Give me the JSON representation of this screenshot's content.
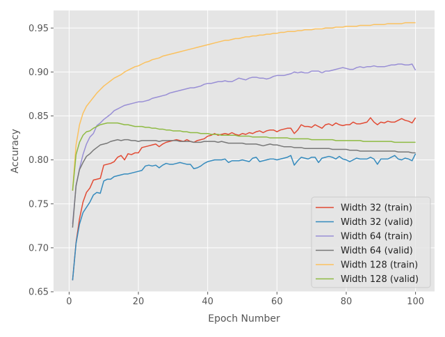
{
  "chart_data": {
    "type": "line",
    "title": "",
    "xlabel": "Epoch Number",
    "ylabel": "Accuracy",
    "xlim": [
      -4.5,
      105.5
    ],
    "ylim": [
      0.65,
      0.97
    ],
    "xticks": [
      0,
      20,
      40,
      60,
      80,
      100
    ],
    "yticks": [
      0.65,
      0.7,
      0.75,
      0.8,
      0.85,
      0.9,
      0.95
    ],
    "ytick_labels": [
      "0.65",
      "0.70",
      "0.75",
      "0.80",
      "0.85",
      "0.90",
      "0.95"
    ],
    "grid": true,
    "legend_position": "lower-right",
    "x_start": 1,
    "x_step": 1,
    "series": [
      {
        "name": "Width 32 (train)",
        "color": "#E24A33",
        "values": [
          0.663,
          0.706,
          0.733,
          0.752,
          0.763,
          0.768,
          0.777,
          0.778,
          0.779,
          0.794,
          0.795,
          0.796,
          0.798,
          0.803,
          0.805,
          0.8,
          0.807,
          0.806,
          0.808,
          0.808,
          0.814,
          0.815,
          0.816,
          0.817,
          0.818,
          0.815,
          0.818,
          0.82,
          0.821,
          0.822,
          0.823,
          0.822,
          0.821,
          0.823,
          0.821,
          0.82,
          0.822,
          0.823,
          0.824,
          0.827,
          0.828,
          0.83,
          0.828,
          0.829,
          0.83,
          0.829,
          0.831,
          0.829,
          0.828,
          0.83,
          0.829,
          0.831,
          0.83,
          0.832,
          0.833,
          0.831,
          0.833,
          0.834,
          0.834,
          0.832,
          0.834,
          0.835,
          0.836,
          0.836,
          0.83,
          0.834,
          0.84,
          0.838,
          0.838,
          0.837,
          0.84,
          0.838,
          0.836,
          0.84,
          0.841,
          0.839,
          0.842,
          0.84,
          0.839,
          0.84,
          0.84,
          0.843,
          0.841,
          0.841,
          0.842,
          0.843,
          0.848,
          0.843,
          0.84,
          0.843,
          0.842,
          0.844,
          0.843,
          0.843,
          0.845,
          0.847,
          0.845,
          0.844,
          0.842,
          0.848
        ]
      },
      {
        "name": "Width 32 (valid)",
        "color": "#348ABD",
        "values": [
          0.663,
          0.705,
          0.727,
          0.74,
          0.746,
          0.752,
          0.76,
          0.763,
          0.762,
          0.776,
          0.778,
          0.778,
          0.781,
          0.782,
          0.783,
          0.784,
          0.784,
          0.785,
          0.786,
          0.787,
          0.788,
          0.793,
          0.794,
          0.793,
          0.794,
          0.791,
          0.794,
          0.796,
          0.795,
          0.795,
          0.796,
          0.797,
          0.796,
          0.795,
          0.795,
          0.79,
          0.791,
          0.793,
          0.796,
          0.798,
          0.799,
          0.8,
          0.8,
          0.8,
          0.801,
          0.797,
          0.799,
          0.799,
          0.799,
          0.8,
          0.799,
          0.798,
          0.802,
          0.803,
          0.798,
          0.799,
          0.8,
          0.801,
          0.801,
          0.8,
          0.801,
          0.802,
          0.803,
          0.805,
          0.794,
          0.799,
          0.803,
          0.802,
          0.801,
          0.803,
          0.803,
          0.797,
          0.802,
          0.803,
          0.804,
          0.803,
          0.801,
          0.804,
          0.801,
          0.8,
          0.798,
          0.8,
          0.802,
          0.801,
          0.801,
          0.801,
          0.803,
          0.801,
          0.795,
          0.801,
          0.801,
          0.801,
          0.803,
          0.805,
          0.801,
          0.8,
          0.802,
          0.801,
          0.799,
          0.807
        ]
      },
      {
        "name": "Width 64 (train)",
        "color": "#988ED5",
        "values": [
          0.727,
          0.77,
          0.79,
          0.806,
          0.818,
          0.826,
          0.83,
          0.839,
          0.842,
          0.846,
          0.849,
          0.852,
          0.856,
          0.858,
          0.86,
          0.862,
          0.863,
          0.864,
          0.865,
          0.866,
          0.866,
          0.867,
          0.868,
          0.87,
          0.871,
          0.872,
          0.873,
          0.874,
          0.876,
          0.877,
          0.878,
          0.879,
          0.88,
          0.881,
          0.882,
          0.882,
          0.883,
          0.884,
          0.886,
          0.887,
          0.887,
          0.888,
          0.889,
          0.889,
          0.89,
          0.889,
          0.889,
          0.891,
          0.893,
          0.892,
          0.891,
          0.893,
          0.894,
          0.894,
          0.893,
          0.893,
          0.892,
          0.893,
          0.895,
          0.896,
          0.896,
          0.896,
          0.897,
          0.898,
          0.9,
          0.899,
          0.9,
          0.899,
          0.899,
          0.901,
          0.901,
          0.901,
          0.899,
          0.901,
          0.901,
          0.902,
          0.903,
          0.904,
          0.905,
          0.904,
          0.903,
          0.903,
          0.905,
          0.906,
          0.905,
          0.906,
          0.906,
          0.907,
          0.906,
          0.906,
          0.906,
          0.907,
          0.908,
          0.908,
          0.909,
          0.909,
          0.908,
          0.908,
          0.909,
          0.902
        ]
      },
      {
        "name": "Width 64 (valid)",
        "color": "#777777",
        "values": [
          0.723,
          0.771,
          0.789,
          0.797,
          0.804,
          0.807,
          0.811,
          0.814,
          0.817,
          0.818,
          0.819,
          0.821,
          0.822,
          0.823,
          0.822,
          0.823,
          0.823,
          0.822,
          0.822,
          0.821,
          0.822,
          0.822,
          0.822,
          0.822,
          0.822,
          0.821,
          0.822,
          0.822,
          0.822,
          0.822,
          0.822,
          0.821,
          0.821,
          0.821,
          0.821,
          0.82,
          0.82,
          0.82,
          0.821,
          0.821,
          0.821,
          0.821,
          0.82,
          0.821,
          0.82,
          0.819,
          0.819,
          0.819,
          0.819,
          0.819,
          0.818,
          0.818,
          0.818,
          0.818,
          0.817,
          0.816,
          0.817,
          0.818,
          0.817,
          0.817,
          0.816,
          0.815,
          0.815,
          0.815,
          0.814,
          0.814,
          0.814,
          0.813,
          0.813,
          0.813,
          0.813,
          0.813,
          0.813,
          0.813,
          0.813,
          0.812,
          0.812,
          0.812,
          0.812,
          0.812,
          0.811,
          0.811,
          0.811,
          0.81,
          0.81,
          0.81,
          0.81,
          0.81,
          0.81,
          0.81,
          0.81,
          0.81,
          0.81,
          0.81,
          0.809,
          0.809,
          0.809,
          0.809,
          0.808,
          0.808
        ]
      },
      {
        "name": "Width 128 (train)",
        "color": "#FBC15E",
        "values": [
          0.765,
          0.817,
          0.84,
          0.853,
          0.861,
          0.866,
          0.871,
          0.876,
          0.88,
          0.884,
          0.887,
          0.89,
          0.893,
          0.895,
          0.897,
          0.9,
          0.902,
          0.904,
          0.906,
          0.907,
          0.909,
          0.911,
          0.912,
          0.914,
          0.915,
          0.916,
          0.918,
          0.919,
          0.92,
          0.921,
          0.922,
          0.923,
          0.924,
          0.925,
          0.926,
          0.927,
          0.928,
          0.929,
          0.93,
          0.931,
          0.932,
          0.933,
          0.934,
          0.935,
          0.936,
          0.936,
          0.937,
          0.938,
          0.938,
          0.939,
          0.94,
          0.94,
          0.941,
          0.941,
          0.942,
          0.942,
          0.943,
          0.943,
          0.944,
          0.944,
          0.945,
          0.945,
          0.946,
          0.946,
          0.946,
          0.947,
          0.947,
          0.948,
          0.948,
          0.948,
          0.949,
          0.949,
          0.949,
          0.95,
          0.95,
          0.95,
          0.951,
          0.951,
          0.951,
          0.952,
          0.952,
          0.952,
          0.952,
          0.953,
          0.953,
          0.953,
          0.953,
          0.954,
          0.954,
          0.954,
          0.954,
          0.955,
          0.955,
          0.955,
          0.955,
          0.955,
          0.956,
          0.956,
          0.956,
          0.956
        ]
      },
      {
        "name": "Width 128 (valid)",
        "color": "#8EBA42",
        "values": [
          0.765,
          0.806,
          0.82,
          0.828,
          0.832,
          0.833,
          0.836,
          0.838,
          0.84,
          0.841,
          0.842,
          0.842,
          0.842,
          0.842,
          0.841,
          0.84,
          0.84,
          0.839,
          0.838,
          0.838,
          0.838,
          0.837,
          0.837,
          0.836,
          0.836,
          0.835,
          0.835,
          0.834,
          0.834,
          0.833,
          0.833,
          0.833,
          0.832,
          0.832,
          0.831,
          0.831,
          0.831,
          0.83,
          0.83,
          0.83,
          0.829,
          0.829,
          0.829,
          0.828,
          0.828,
          0.828,
          0.828,
          0.828,
          0.827,
          0.827,
          0.827,
          0.827,
          0.826,
          0.826,
          0.826,
          0.826,
          0.826,
          0.825,
          0.825,
          0.825,
          0.825,
          0.825,
          0.825,
          0.824,
          0.824,
          0.824,
          0.824,
          0.824,
          0.824,
          0.823,
          0.823,
          0.823,
          0.823,
          0.823,
          0.823,
          0.823,
          0.822,
          0.822,
          0.822,
          0.822,
          0.822,
          0.822,
          0.822,
          0.822,
          0.821,
          0.821,
          0.821,
          0.821,
          0.821,
          0.821,
          0.821,
          0.821,
          0.821,
          0.82,
          0.82,
          0.82,
          0.82,
          0.82,
          0.82,
          0.82
        ]
      }
    ]
  }
}
